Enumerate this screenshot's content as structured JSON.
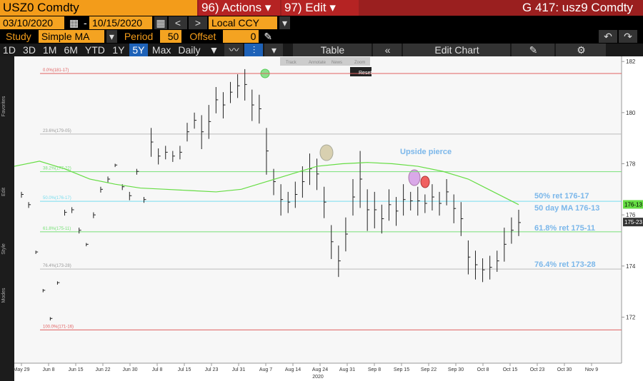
{
  "header": {
    "ticker": "USZ0 Comdty",
    "actions": "96) Actions",
    "edit": "97) Edit",
    "right_title": "G 417: usz9 Comdty"
  },
  "dates": {
    "start": "03/10/2020",
    "sep": "-",
    "end": "10/15/2020",
    "currency": "Local CCY"
  },
  "study": {
    "label": "Study",
    "name": "Simple MA",
    "period_label": "Period",
    "period": "50",
    "offset_label": "Offset",
    "offset": "0"
  },
  "periods": [
    "1D",
    "3D",
    "1M",
    "6M",
    "YTD",
    "1Y",
    "5Y",
    "Max"
  ],
  "active_period": "5Y",
  "frequency": "Daily",
  "tools": {
    "table": "Table",
    "edit_chart": "Edit Chart"
  },
  "overlay": {
    "buttons": [
      "Track",
      "Annotate",
      "News",
      "Zoom"
    ],
    "reset": "Reset"
  },
  "side_labels": [
    "Favorites",
    "Edit",
    "Style",
    "Modes"
  ],
  "chart_data": {
    "type": "ohlc",
    "ylim": [
      170.2,
      182.2
    ],
    "yticks": [
      172,
      174,
      176,
      178,
      180,
      182
    ],
    "date_labels": [
      "May 29",
      "Jun 8",
      "Jun 15",
      "Jun 22",
      "Jun 30",
      "Jul 8",
      "Jul 15",
      "Jul 23",
      "Jul 31",
      "Aug 7",
      "Aug 14",
      "Aug 24",
      "Aug 31",
      "Sep 8",
      "Sep 15",
      "Sep 22",
      "Sep 30",
      "Oct 8",
      "Oct 15",
      "Oct 23",
      "Oct 30",
      "Nov 9"
    ],
    "year_label": "2020",
    "bar_color": "#222222",
    "highs": [
      176.9,
      176.5,
      174.6,
      173.1,
      172.0,
      173.4,
      176.2,
      176.3,
      175.5,
      174.9,
      176.1,
      177.1,
      177.5,
      178.0,
      177.2,
      176.9,
      177.8,
      176.7,
      179.4,
      178.6,
      178.7,
      178.5,
      178.7,
      179.6,
      180.0,
      179.9,
      180.3,
      181.0,
      180.8,
      181.2,
      181.5,
      181.7,
      180.9,
      180.7,
      179.4,
      177.8,
      177.2,
      176.9,
      177.3,
      177.9,
      178.4,
      178.2,
      177.1,
      175.6,
      174.8,
      175.9,
      177.4,
      178.5,
      177.0,
      176.9,
      176.4,
      177.0,
      176.7,
      177.2,
      176.9,
      177.1,
      176.8,
      177.2,
      176.9,
      177.4,
      176.8,
      176.5,
      175.0,
      174.6,
      174.3,
      174.4,
      174.6,
      175.5,
      175.9,
      176.2
    ],
    "lows": [
      176.7,
      176.3,
      174.5,
      173.0,
      171.9,
      173.3,
      176.0,
      176.1,
      175.3,
      174.8,
      175.9,
      176.9,
      177.3,
      177.9,
      177.0,
      176.6,
      177.6,
      176.5,
      178.3,
      178.0,
      178.2,
      178.1,
      178.2,
      178.9,
      179.4,
      178.6,
      179.0,
      180.0,
      179.8,
      180.4,
      180.6,
      180.5,
      179.7,
      179.6,
      177.6,
      176.8,
      176.0,
      176.1,
      176.3,
      176.7,
      177.2,
      177.0,
      175.9,
      174.3,
      173.6,
      174.6,
      176.0,
      176.3,
      175.4,
      175.5,
      175.3,
      175.8,
      175.6,
      176.0,
      176.2,
      176.0,
      176.1,
      176.2,
      176.0,
      176.4,
      175.7,
      175.2,
      173.7,
      173.5,
      173.4,
      173.5,
      173.8,
      174.2,
      174.9,
      175.2
    ],
    "ma": {
      "color": "#66dd44",
      "values": [
        177.9,
        178.1,
        177.8,
        177.4,
        177.2,
        177.05,
        177.0,
        176.95,
        176.9,
        177.0,
        177.3,
        177.6,
        177.9,
        178.0,
        178.05,
        178.0,
        177.9,
        177.7,
        177.4,
        176.9,
        176.4
      ]
    },
    "levels": [
      {
        "label": "0.0%(181-17)",
        "value": 181.53,
        "color": "#e06060"
      },
      {
        "label": "23.6%(179-05)",
        "value": 179.16,
        "color": "#bbbbbb"
      },
      {
        "label": "38.2%(177-22)",
        "value": 177.69,
        "color": "#77e077"
      },
      {
        "label": "50.0%(176-17)",
        "value": 176.53,
        "color": "#77ddee"
      },
      {
        "label": "61.8%(175-11)",
        "value": 175.34,
        "color": "#77e077"
      },
      {
        "label": "76.4%(173-28)",
        "value": 173.88,
        "color": "#bbbbbb"
      },
      {
        "label": "100.0%(171-16)",
        "value": 171.5,
        "color": "#e06060"
      }
    ],
    "price_tags": [
      {
        "label": "176-13",
        "value": 176.41,
        "color": "#66dd44"
      },
      {
        "label": "175-23",
        "value": 175.72,
        "color": "#333333"
      }
    ],
    "annotations": [
      "Upside pierce",
      "50% ret 176-17",
      "50 day MA 176-13",
      "61.8% ret 175-11",
      "76.4% ret 173-28"
    ]
  }
}
